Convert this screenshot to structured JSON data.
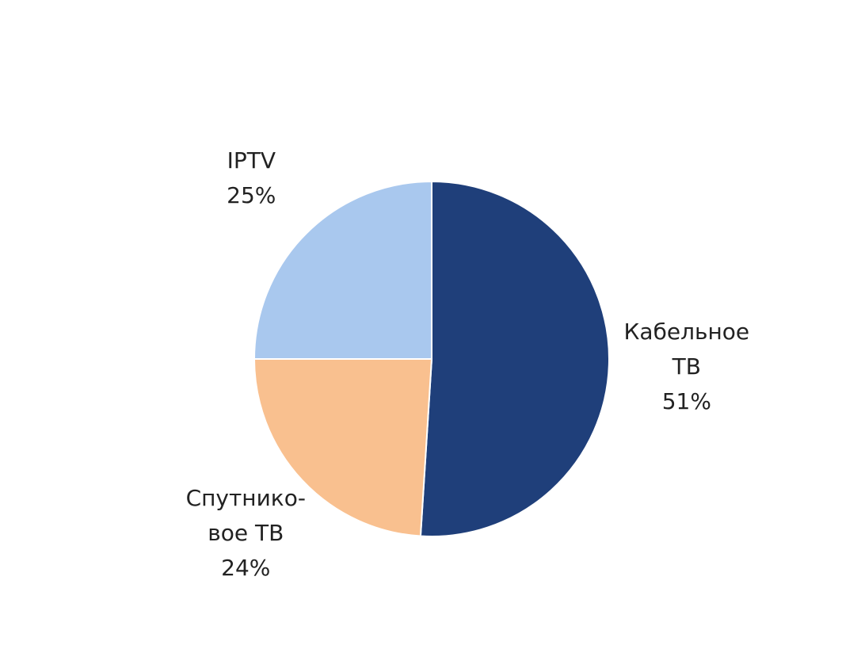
{
  "chart_data": {
    "type": "pie",
    "categories": [
      "Кабельное ТВ",
      "Спутнико-вое ТВ",
      "IPTV"
    ],
    "values": [
      51,
      24,
      25
    ],
    "value_labels": [
      "51%",
      "24%",
      "25%"
    ],
    "colors": [
      "#1f3f7a",
      "#f9c08f",
      "#a9c8ee"
    ]
  }
}
